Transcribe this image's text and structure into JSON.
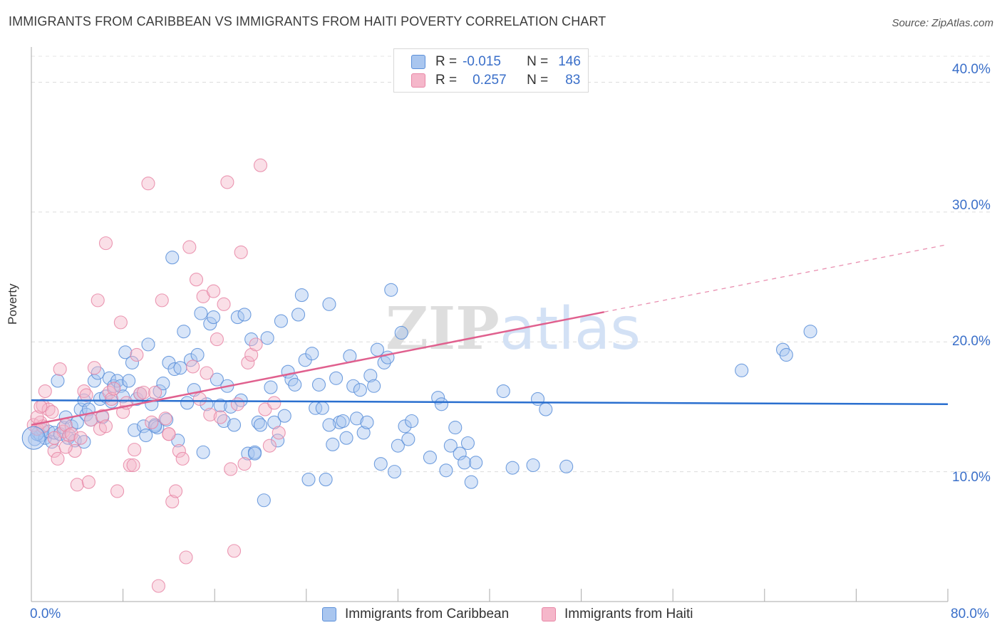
{
  "title": "IMMIGRANTS FROM CARIBBEAN VS IMMIGRANTS FROM HAITI POVERTY CORRELATION CHART",
  "source": "Source: ZipAtlas.com",
  "watermark": "ZIPatlas",
  "legend": {
    "rows": [
      {
        "r_label": "R =",
        "r_value": "-0.015",
        "n_label": "N =",
        "n_value": "146"
      },
      {
        "r_label": "R =",
        "r_value": "0.257",
        "n_label": "N =",
        "n_value": "83"
      }
    ]
  },
  "colors": {
    "blue_fill": "#a9c6ef",
    "blue_stroke": "#5b8fd9",
    "blue_line": "#2a6fcf",
    "pink_fill": "#f5b7ca",
    "pink_stroke": "#e886a6",
    "pink_line": "#e0608e",
    "axis_text": "#3a6fc9"
  },
  "chart_data": {
    "type": "scatter",
    "title": "IMMIGRANTS FROM CARIBBEAN VS IMMIGRANTS FROM HAITI POVERTY CORRELATION CHART",
    "xlabel": "",
    "ylabel": "Poverty",
    "xlim": [
      0,
      80
    ],
    "ylim": [
      0,
      42
    ],
    "x_tick_labels": [
      "0.0%",
      "80.0%"
    ],
    "y_ticks": [
      10,
      20,
      30,
      40
    ],
    "y_tick_labels": [
      "10.0%",
      "20.0%",
      "30.0%",
      "40.0%"
    ],
    "grid": true,
    "legend_position": "top-center",
    "series": [
      {
        "name": "Immigrants from Caribbean",
        "color": "#5b8fd9",
        "trend": {
          "x0": 0,
          "y0": 15.5,
          "x1": 80,
          "y1": 15.2
        },
        "points": [
          [
            0.3,
            12.5
          ],
          [
            0.6,
            13.0
          ],
          [
            0.8,
            12.8
          ],
          [
            1.0,
            13.2
          ],
          [
            1.2,
            12.6
          ],
          [
            1.5,
            13.1
          ],
          [
            1.8,
            12.3
          ],
          [
            2.0,
            13.0
          ],
          [
            2.3,
            17.0
          ],
          [
            2.5,
            12.9
          ],
          [
            2.8,
            13.4
          ],
          [
            3.0,
            14.2
          ],
          [
            3.2,
            12.6
          ],
          [
            3.5,
            13.5
          ],
          [
            3.8,
            12.4
          ],
          [
            4.0,
            13.8
          ],
          [
            4.3,
            14.8
          ],
          [
            4.6,
            15.5
          ],
          [
            4.8,
            14.4
          ],
          [
            5.0,
            14.8
          ],
          [
            5.2,
            14.0
          ],
          [
            5.5,
            17.0
          ],
          [
            5.8,
            17.6
          ],
          [
            6.0,
            15.6
          ],
          [
            6.2,
            14.2
          ],
          [
            6.5,
            15.8
          ],
          [
            6.8,
            17.2
          ],
          [
            7.0,
            15.4
          ],
          [
            7.2,
            16.6
          ],
          [
            7.5,
            17.0
          ],
          [
            7.8,
            16.6
          ],
          [
            8.0,
            15.8
          ],
          [
            8.2,
            19.2
          ],
          [
            8.5,
            17.0
          ],
          [
            8.8,
            18.4
          ],
          [
            9.0,
            13.2
          ],
          [
            9.2,
            15.6
          ],
          [
            9.5,
            16.0
          ],
          [
            9.8,
            13.5
          ],
          [
            10.0,
            12.8
          ],
          [
            10.2,
            19.8
          ],
          [
            10.5,
            15.2
          ],
          [
            10.8,
            13.6
          ],
          [
            11.0,
            13.4
          ],
          [
            11.2,
            16.2
          ],
          [
            11.5,
            16.8
          ],
          [
            11.8,
            14.0
          ],
          [
            12.0,
            18.4
          ],
          [
            12.3,
            26.5
          ],
          [
            12.5,
            17.9
          ],
          [
            12.8,
            12.4
          ],
          [
            13.0,
            18.0
          ],
          [
            13.3,
            20.8
          ],
          [
            13.6,
            15.3
          ],
          [
            13.9,
            18.6
          ],
          [
            14.2,
            16.3
          ],
          [
            14.5,
            19.0
          ],
          [
            14.8,
            22.2
          ],
          [
            15.0,
            11.5
          ],
          [
            15.3,
            15.2
          ],
          [
            15.6,
            21.4
          ],
          [
            15.9,
            21.9
          ],
          [
            16.2,
            17.1
          ],
          [
            16.5,
            15.1
          ],
          [
            16.8,
            13.9
          ],
          [
            17.1,
            16.6
          ],
          [
            17.4,
            15.0
          ],
          [
            17.7,
            13.6
          ],
          [
            18.0,
            21.9
          ],
          [
            18.3,
            15.5
          ],
          [
            18.6,
            22.1
          ],
          [
            18.9,
            11.4
          ],
          [
            19.2,
            20.2
          ],
          [
            19.5,
            11.5
          ],
          [
            19.8,
            13.8
          ],
          [
            20.0,
            13.6
          ],
          [
            20.3,
            7.8
          ],
          [
            20.6,
            20.3
          ],
          [
            20.9,
            16.5
          ],
          [
            21.2,
            13.8
          ],
          [
            21.5,
            12.4
          ],
          [
            21.8,
            21.6
          ],
          [
            22.1,
            14.3
          ],
          [
            22.4,
            17.7
          ],
          [
            22.7,
            17.1
          ],
          [
            23.0,
            16.7
          ],
          [
            23.3,
            22.1
          ],
          [
            23.6,
            23.6
          ],
          [
            23.9,
            18.6
          ],
          [
            24.2,
            9.4
          ],
          [
            24.5,
            19.1
          ],
          [
            24.8,
            14.9
          ],
          [
            25.1,
            16.7
          ],
          [
            25.4,
            14.9
          ],
          [
            25.7,
            9.4
          ],
          [
            26.0,
            22.9
          ],
          [
            26.3,
            12.1
          ],
          [
            26.6,
            17.2
          ],
          [
            26.9,
            13.8
          ],
          [
            27.2,
            13.9
          ],
          [
            27.5,
            12.6
          ],
          [
            27.8,
            18.9
          ],
          [
            28.1,
            16.6
          ],
          [
            28.4,
            14.1
          ],
          [
            28.7,
            16.3
          ],
          [
            29.0,
            13.0
          ],
          [
            29.3,
            13.8
          ],
          [
            29.6,
            17.4
          ],
          [
            29.9,
            16.6
          ],
          [
            30.2,
            19.4
          ],
          [
            30.5,
            10.6
          ],
          [
            30.8,
            18.4
          ],
          [
            31.1,
            18.8
          ],
          [
            31.4,
            24.0
          ],
          [
            31.7,
            10.0
          ],
          [
            32.0,
            12.0
          ],
          [
            32.3,
            20.7
          ],
          [
            32.6,
            13.5
          ],
          [
            32.9,
            12.5
          ],
          [
            33.2,
            13.9
          ],
          [
            34.8,
            11.1
          ],
          [
            35.5,
            15.7
          ],
          [
            35.8,
            15.2
          ],
          [
            36.2,
            10.1
          ],
          [
            36.6,
            12.0
          ],
          [
            37.0,
            13.4
          ],
          [
            37.4,
            11.4
          ],
          [
            37.8,
            10.7
          ],
          [
            38.1,
            12.2
          ],
          [
            38.4,
            9.2
          ],
          [
            38.8,
            10.7
          ],
          [
            41.2,
            16.2
          ],
          [
            42.0,
            10.3
          ],
          [
            43.8,
            10.5
          ],
          [
            44.2,
            15.6
          ],
          [
            44.9,
            14.8
          ],
          [
            46.7,
            10.4
          ],
          [
            62.0,
            17.8
          ],
          [
            65.6,
            19.4
          ],
          [
            65.9,
            19.0
          ],
          [
            68.0,
            20.8
          ],
          [
            19.5,
            11.4
          ],
          [
            26.0,
            13.6
          ],
          [
            10.8,
            13.5
          ],
          [
            4.6,
            12.3
          ],
          [
            0.5,
            12.9
          ]
        ]
      },
      {
        "name": "Immigrants from Haiti",
        "color": "#e886a6",
        "trend": {
          "x0": 0,
          "y0": 13.6,
          "x1": 50,
          "y1": 22.3,
          "dash_to_x": 80,
          "dash_to_y": 27.5
        },
        "points": [
          [
            0.2,
            13.6
          ],
          [
            0.5,
            13.3
          ],
          [
            0.8,
            13.8
          ],
          [
            1.0,
            15.1
          ],
          [
            1.2,
            16.2
          ],
          [
            1.5,
            14.8
          ],
          [
            1.8,
            14.6
          ],
          [
            2.0,
            11.6
          ],
          [
            2.3,
            11.0
          ],
          [
            2.5,
            17.9
          ],
          [
            2.8,
            13.1
          ],
          [
            3.0,
            13.6
          ],
          [
            3.3,
            12.8
          ],
          [
            3.5,
            12.9
          ],
          [
            3.8,
            11.6
          ],
          [
            4.0,
            9.0
          ],
          [
            4.3,
            12.6
          ],
          [
            4.6,
            16.2
          ],
          [
            4.8,
            15.9
          ],
          [
            5.0,
            9.2
          ],
          [
            5.2,
            14.0
          ],
          [
            5.5,
            18.0
          ],
          [
            5.8,
            23.2
          ],
          [
            6.0,
            13.3
          ],
          [
            6.2,
            14.3
          ],
          [
            6.5,
            27.6
          ],
          [
            6.8,
            16.1
          ],
          [
            7.0,
            15.6
          ],
          [
            7.2,
            16.4
          ],
          [
            7.5,
            8.5
          ],
          [
            7.8,
            21.5
          ],
          [
            8.0,
            14.6
          ],
          [
            8.3,
            15.3
          ],
          [
            8.6,
            10.5
          ],
          [
            8.9,
            10.5
          ],
          [
            9.2,
            19.0
          ],
          [
            9.5,
            16.0
          ],
          [
            9.8,
            16.1
          ],
          [
            10.2,
            32.2
          ],
          [
            10.5,
            13.8
          ],
          [
            10.8,
            16.1
          ],
          [
            11.1,
            1.2
          ],
          [
            11.4,
            23.2
          ],
          [
            11.7,
            14.1
          ],
          [
            12.0,
            12.9
          ],
          [
            12.3,
            7.7
          ],
          [
            12.6,
            8.5
          ],
          [
            12.9,
            11.6
          ],
          [
            13.2,
            11.0
          ],
          [
            13.5,
            3.4
          ],
          [
            13.8,
            27.3
          ],
          [
            14.1,
            18.1
          ],
          [
            14.4,
            24.8
          ],
          [
            14.7,
            15.6
          ],
          [
            15.0,
            23.5
          ],
          [
            15.3,
            17.6
          ],
          [
            15.6,
            14.4
          ],
          [
            15.9,
            23.9
          ],
          [
            16.2,
            20.2
          ],
          [
            16.5,
            14.2
          ],
          [
            16.8,
            22.9
          ],
          [
            17.1,
            32.3
          ],
          [
            17.4,
            10.2
          ],
          [
            17.7,
            3.9
          ],
          [
            18.0,
            15.2
          ],
          [
            18.3,
            26.9
          ],
          [
            18.6,
            10.6
          ],
          [
            18.9,
            18.4
          ],
          [
            19.2,
            19.0
          ],
          [
            19.6,
            19.8
          ],
          [
            20.0,
            33.6
          ],
          [
            20.4,
            14.8
          ],
          [
            20.8,
            12.0
          ],
          [
            21.2,
            15.3
          ],
          [
            21.6,
            13.0
          ],
          [
            2.0,
            12.6
          ],
          [
            1.0,
            13.5
          ],
          [
            0.5,
            14.2
          ],
          [
            0.8,
            15.0
          ],
          [
            3.0,
            11.9
          ],
          [
            9.0,
            11.7
          ],
          [
            12.0,
            12.9
          ],
          [
            6.5,
            13.5
          ]
        ]
      }
    ]
  },
  "bottom_legend": [
    {
      "label": "Immigrants from Caribbean"
    },
    {
      "label": "Immigrants from Haiti"
    }
  ]
}
